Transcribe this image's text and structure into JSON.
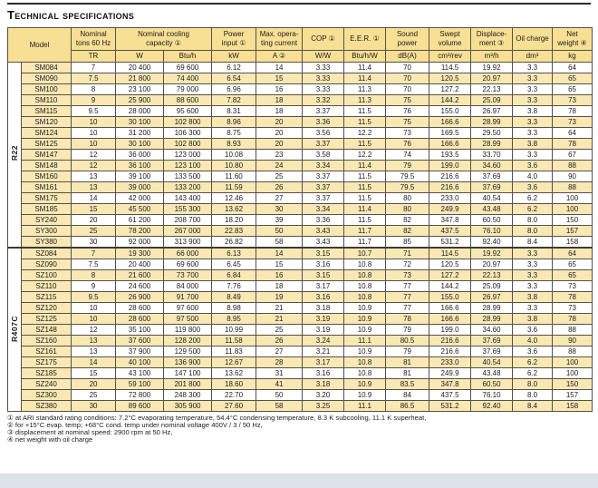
{
  "title": "Technical specifications",
  "table": {
    "model_header": "Model",
    "columns": [
      {
        "id": "tons",
        "label": "Nominal\ntons 60 Hz",
        "units": [
          "TR"
        ]
      },
      {
        "id": "capacity",
        "label": "Nominal cooling\ncapacity   ①",
        "units": [
          "W",
          "Btu/h"
        ]
      },
      {
        "id": "power-input",
        "label": "Power\ninput   ①",
        "units": [
          "kW"
        ]
      },
      {
        "id": "max-current",
        "label": "Max. opera-\nting current",
        "units": [
          "A   ②"
        ]
      },
      {
        "id": "cop",
        "label": "COP   ①",
        "units": [
          "W/W"
        ]
      },
      {
        "id": "eer",
        "label": "E.E.R.   ①",
        "units": [
          "Btu/h/W"
        ]
      },
      {
        "id": "sound-power",
        "label": "Sound\npower",
        "units": [
          "dB(A)"
        ]
      },
      {
        "id": "swept-volume",
        "label": "Swept\nvolume",
        "units": [
          "cm³/rev"
        ]
      },
      {
        "id": "displacement",
        "label": "Displace-\nment   ③",
        "units": [
          "m³/h"
        ]
      },
      {
        "id": "oil-charge",
        "label": "Oil charge",
        "units": [
          "dm³"
        ]
      },
      {
        "id": "net-weight",
        "label": "Net\nweight ④",
        "units": [
          "kg"
        ]
      }
    ],
    "sections": [
      {
        "refrigerant": "R22",
        "rows": [
          [
            "SM084",
            "7",
            "20 400",
            "69 600",
            "6.12",
            "14",
            "3.33",
            "11.4",
            "70",
            "114.5",
            "19.92",
            "3.3",
            "64"
          ],
          [
            "SM090",
            "7.5",
            "21 800",
            "74 400",
            "6.54",
            "15",
            "3.33",
            "11.4",
            "70",
            "120.5",
            "20.97",
            "3.3",
            "65"
          ],
          [
            "SM100",
            "8",
            "23 100",
            "79 000",
            "6.96",
            "16",
            "3.33",
            "11.3",
            "70",
            "127.2",
            "22.13",
            "3.3",
            "65"
          ],
          [
            "SM110",
            "9",
            "25 900",
            "88 600",
            "7.82",
            "18",
            "3.32",
            "11.3",
            "75",
            "144.2",
            "25.09",
            "3.3",
            "73"
          ],
          [
            "SM115",
            "9.5",
            "28 000",
            "95 600",
            "8.31",
            "18",
            "3.37",
            "11.5",
            "76",
            "155.0",
            "26.97",
            "3.8",
            "78"
          ],
          [
            "SM120",
            "10",
            "30 100",
            "102 800",
            "8.96",
            "20",
            "3.36",
            "11.5",
            "75",
            "166.6",
            "28.99",
            "3.3",
            "73"
          ],
          [
            "SM124",
            "10",
            "31 200",
            "106 300",
            "8.75",
            "20",
            "3.56",
            "12.2",
            "73",
            "169.5",
            "29.50",
            "3.3",
            "64"
          ],
          [
            "SM125",
            "10",
            "30 100",
            "102 800",
            "8.93",
            "20",
            "3.37",
            "11.5",
            "76",
            "166.6",
            "28.99",
            "3.8",
            "78"
          ],
          [
            "SM147",
            "12",
            "36 000",
            "123 000",
            "10.08",
            "23",
            "3.58",
            "12.2",
            "74",
            "193.5",
            "33.70",
            "3.3",
            "67"
          ],
          [
            "SM148",
            "12",
            "36 100",
            "123 100",
            "10.80",
            "24",
            "3.34",
            "11.4",
            "79",
            "199.0",
            "34.60",
            "3.6",
            "88"
          ],
          [
            "SM160",
            "13",
            "39 100",
            "133 500",
            "11.60",
            "25",
            "3.37",
            "11.5",
            "79.5",
            "216.6",
            "37.69",
            "4.0",
            "90"
          ],
          [
            "SM161",
            "13",
            "39 000",
            "133 200",
            "11.59",
            "26",
            "3.37",
            "11.5",
            "79.5",
            "216.6",
            "37.69",
            "3.6",
            "88"
          ],
          [
            "SM175",
            "14",
            "42 000",
            "143 400",
            "12.46",
            "27",
            "3.37",
            "11.5",
            "80",
            "233.0",
            "40.54",
            "6.2",
            "100"
          ],
          [
            "SM185",
            "15",
            "45 500",
            "155 300",
            "13.62",
            "30",
            "3.34",
            "11.4",
            "80",
            "249.9",
            "43.48",
            "6.2",
            "100"
          ],
          [
            "SY240",
            "20",
            "61 200",
            "208 700",
            "18.20",
            "39",
            "3.36",
            "11.5",
            "82",
            "347.8",
            "60.50",
            "8.0",
            "150"
          ],
          [
            "SY300",
            "25",
            "78 200",
            "267 000",
            "22.83",
            "50",
            "3.43",
            "11.7",
            "82",
            "437.5",
            "76.10",
            "8.0",
            "157"
          ],
          [
            "SY380",
            "30",
            "92 000",
            "313 900",
            "26.82",
            "58",
            "3.43",
            "11.7",
            "85",
            "531.2",
            "92.40",
            "8.4",
            "158"
          ]
        ]
      },
      {
        "refrigerant": "R407C",
        "rows": [
          [
            "SZ084",
            "7",
            "19 300",
            "66 000",
            "6.13",
            "14",
            "3.15",
            "10.7",
            "71",
            "114.5",
            "19.92",
            "3.3",
            "64"
          ],
          [
            "SZ090",
            "7.5",
            "20 400",
            "69 600",
            "6.45",
            "15",
            "3.16",
            "10.8",
            "72",
            "120.5",
            "20.97",
            "3.3",
            "65"
          ],
          [
            "SZ100",
            "8",
            "21 600",
            "73 700",
            "6.84",
            "16",
            "3.15",
            "10.8",
            "73",
            "127.2",
            "22.13",
            "3.3",
            "65"
          ],
          [
            "SZ110",
            "9",
            "24 600",
            "84 000",
            "7.76",
            "18",
            "3.17",
            "10.8",
            "77",
            "144.2",
            "25.09",
            "3.3",
            "73"
          ],
          [
            "SZ115",
            "9.5",
            "26 900",
            "91 700",
            "8.49",
            "19",
            "3.16",
            "10.8",
            "77",
            "155.0",
            "26.97",
            "3.8",
            "78"
          ],
          [
            "SZ120",
            "10",
            "28 600",
            "97 600",
            "8.98",
            "21",
            "3.18",
            "10.9",
            "77",
            "166.6",
            "28.99",
            "3.3",
            "73"
          ],
          [
            "SZ125",
            "10",
            "28 600",
            "97 500",
            "8.95",
            "21",
            "3.19",
            "10.9",
            "78",
            "166.6",
            "28.99",
            "3.8",
            "78"
          ],
          [
            "SZ148",
            "12",
            "35 100",
            "119 800",
            "10.99",
            "25",
            "3.19",
            "10.9",
            "79",
            "199.0",
            "34.60",
            "3.6",
            "88"
          ],
          [
            "SZ160",
            "13",
            "37 600",
            "128 200",
            "11.58",
            "26",
            "3.24",
            "11.1",
            "80.5",
            "216.6",
            "37.69",
            "4.0",
            "90"
          ],
          [
            "SZ161",
            "13",
            "37 900",
            "129 500",
            "11.83",
            "27",
            "3.21",
            "10.9",
            "79",
            "216.6",
            "37.69",
            "3.6",
            "88"
          ],
          [
            "SZ175",
            "14",
            "40 100",
            "136 900",
            "12.67",
            "28",
            "3.17",
            "10.8",
            "81",
            "233.0",
            "40.54",
            "6.2",
            "100"
          ],
          [
            "SZ185",
            "15",
            "43 100",
            "147 100",
            "13.62",
            "31",
            "3.16",
            "10.8",
            "81",
            "249.9",
            "43.48",
            "6.2",
            "100"
          ],
          [
            "SZ240",
            "20",
            "59 100",
            "201 800",
            "18.60",
            "41",
            "3.18",
            "10.9",
            "83.5",
            "347.8",
            "60.50",
            "8.0",
            "150"
          ],
          [
            "SZ300",
            "25",
            "72 800",
            "248 300",
            "22.70",
            "50",
            "3.20",
            "10.9",
            "84",
            "437.5",
            "76.10",
            "8.0",
            "157"
          ],
          [
            "SZ380",
            "30",
            "89 600",
            "305 900",
            "27.60",
            "58",
            "3.25",
            "11.1",
            "86.5",
            "531.2",
            "92.40",
            "8.4",
            "158"
          ]
        ]
      }
    ]
  },
  "footnotes": [
    "① at ARI standard rating conditions: 7.2°C evaporating temperature, 54.4°C condensing temperature, 8.3 K subcooling, 11.1 K superheat,",
    "② for +15°C evap. temp; +68°C cond. temp under nominal voltage 400V / 3 / 50 Hz,",
    "③ displacement at nominal speed: 2900 rpm at 50 Hz,",
    "④ net weight with oil charge"
  ],
  "colors": {
    "header_yellow": "#f7df94",
    "row_yellow": "#f9e8b4",
    "border": "#55514a",
    "bottom_band": "#dde3e9"
  }
}
